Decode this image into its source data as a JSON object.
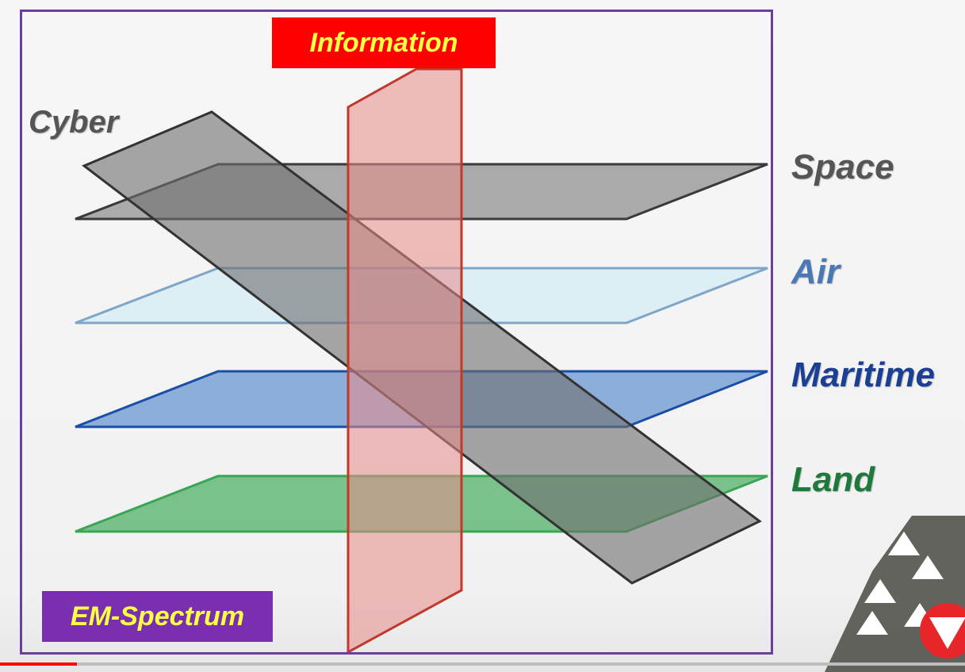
{
  "title": "Information",
  "bottom_label": "EM-Spectrum",
  "labels": {
    "cyber": "Cyber",
    "space": "Space",
    "air": "Air",
    "maritime": "Maritime",
    "land": "Land"
  },
  "colors": {
    "title_bg": "#ff0000",
    "title_text": "#ffff44",
    "em_bg": "#7a2fb0",
    "frame": "#6b3fa0",
    "cyber_plane": "#6e6e6e",
    "space_plane": "#8a8a8a",
    "air_plane": "#d6ecf5",
    "maritime_plane": "#4a80c8",
    "land_plane": "#3aa655",
    "information_plane": "#e88a8a",
    "space_text": "#555555",
    "air_text": "#4a78b5",
    "maritime_text": "#1a3f94",
    "land_text": "#1e7a3a",
    "cyber_text": "#555555"
  },
  "video_progress": 0.08,
  "corner_decor": "triangle-pattern-logo"
}
